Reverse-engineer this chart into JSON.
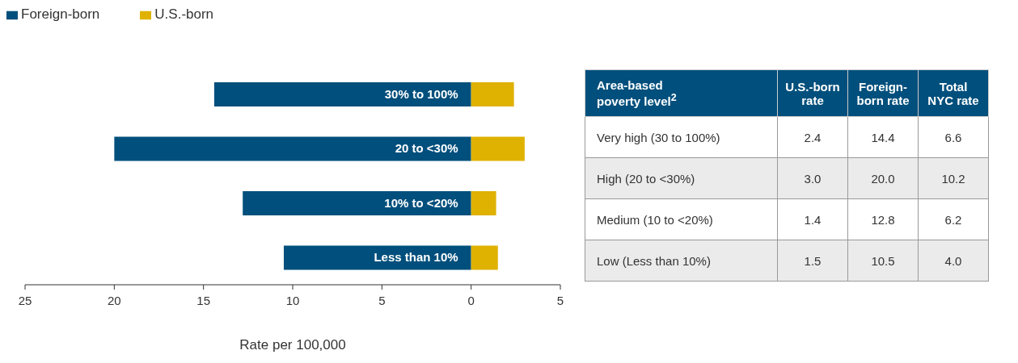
{
  "chart_data": [
    {
      "type": "bar",
      "orientation": "horizontal",
      "stacked": true,
      "xlabel": "Rate per 100,000",
      "categories": [
        "30% to 100%",
        "20 to <30%",
        "10% to <20%",
        "Less than 10%"
      ],
      "series": [
        {
          "name": "Foreign-born",
          "color": "#004f7c",
          "values": [
            -14.4,
            -20.0,
            -12.8,
            -10.5
          ]
        },
        {
          "name": "U.S.-born",
          "color": "#dfb100",
          "values": [
            2.4,
            3.0,
            1.4,
            1.5
          ]
        }
      ],
      "xlim": [
        -25,
        5
      ],
      "xticks": [
        {
          "value": -25,
          "label": "25"
        },
        {
          "value": -20,
          "label": "20"
        },
        {
          "value": -15,
          "label": "15"
        },
        {
          "value": -10,
          "label": "10"
        },
        {
          "value": -5,
          "label": "5"
        },
        0,
        5
      ],
      "legend": "top left"
    },
    {
      "type": "other",
      "ylabel": "Area-based poverty level$^{2}$",
      "categories": [
        "Very high (30 to 100%)",
        "High (20 to <30%)",
        "Medium (10 to <20%)",
        "Low (Less than 10%)"
      ],
      "series": [
        {
          "name": "U.S.-born rate",
          "colors": [
            "#ffffff",
            "#ebebeb",
            "#ffffff",
            "#ebebeb"
          ],
          "values": [
            2.4,
            3.0,
            1.4,
            1.5
          ],
          "value_labels": [
            "2.4",
            "3.0",
            "1.4",
            "1.5"
          ]
        },
        {
          "name": "Foreign-born rate",
          "colors": [
            "#ffffff",
            "#ebebeb",
            "#ffffff",
            "#ebebeb"
          ],
          "values": [
            14.4,
            20.0,
            12.8,
            10.5
          ],
          "value_labels": [
            "14.4",
            "20.0",
            "12.8",
            "10.5"
          ]
        },
        {
          "name": "Total NYC rate",
          "colors": [
            "#ffffff",
            "#ebebeb",
            "#ffffff",
            "#ebebeb"
          ],
          "values": [
            6.6,
            10.2,
            6.2,
            4.0
          ],
          "value_labels": [
            "6.6",
            "10.2",
            "6.2",
            "4.0"
          ]
        }
      ]
    }
  ]
}
